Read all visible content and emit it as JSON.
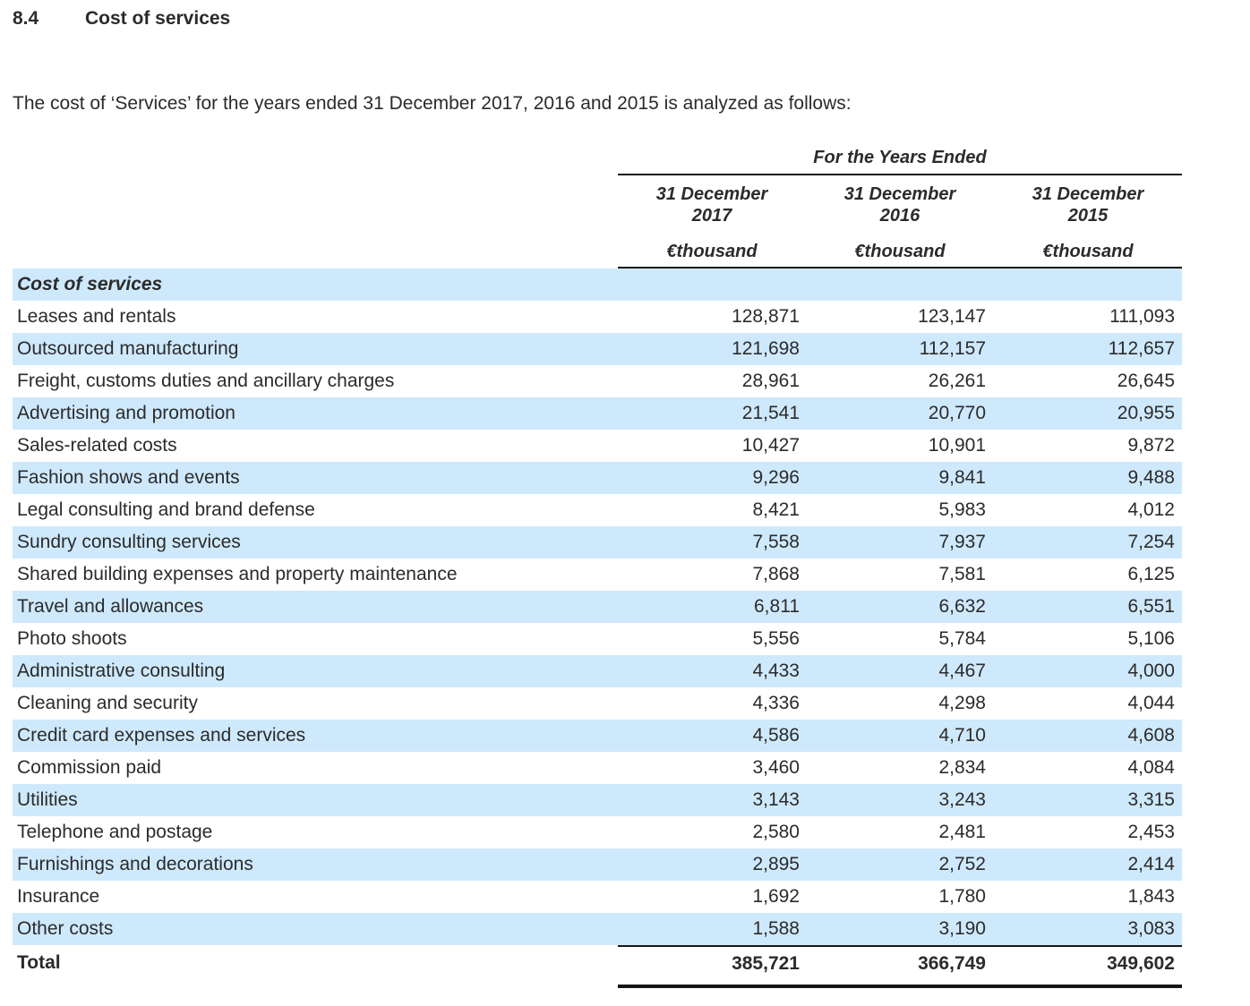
{
  "page": {
    "section_number": "8.4",
    "section_title": "Cost of services",
    "intro": "The cost of ‘Services’ for the years ended 31 December 2017, 2016 and 2015 is analyzed as follows:"
  },
  "colors": {
    "stripe_blue": "#cfe9fc",
    "rule_black": "#161616",
    "text": "#2b2b2b"
  },
  "table": {
    "group_header": "For the Years Ended",
    "columns": [
      {
        "period": "31 December",
        "year": "2017",
        "unit": "€thousand"
      },
      {
        "period": "31 December",
        "year": "2016",
        "unit": "€thousand"
      },
      {
        "period": "31 December",
        "year": "2015",
        "unit": "€thousand"
      }
    ],
    "section_label": "Cost of services",
    "rows": [
      {
        "label": "Leases and rentals",
        "values": [
          "128,871",
          "123,147",
          "111,093"
        ]
      },
      {
        "label": "Outsourced manufacturing",
        "values": [
          "121,698",
          "112,157",
          "112,657"
        ]
      },
      {
        "label": "Freight, customs duties and ancillary charges",
        "values": [
          "28,961",
          "26,261",
          "26,645"
        ]
      },
      {
        "label": "Advertising and promotion",
        "values": [
          "21,541",
          "20,770",
          "20,955"
        ]
      },
      {
        "label": "Sales-related costs",
        "values": [
          "10,427",
          "10,901",
          "9,872"
        ]
      },
      {
        "label": "Fashion shows and events",
        "values": [
          "9,296",
          "9,841",
          "9,488"
        ]
      },
      {
        "label": "Legal consulting and brand defense",
        "values": [
          "8,421",
          "5,983",
          "4,012"
        ]
      },
      {
        "label": "Sundry consulting services",
        "values": [
          "7,558",
          "7,937",
          "7,254"
        ]
      },
      {
        "label": "Shared building expenses and property maintenance",
        "values": [
          "7,868",
          "7,581",
          "6,125"
        ]
      },
      {
        "label": "Travel and allowances",
        "values": [
          "6,811",
          "6,632",
          "6,551"
        ]
      },
      {
        "label": "Photo shoots",
        "values": [
          "5,556",
          "5,784",
          "5,106"
        ]
      },
      {
        "label": "Administrative consulting",
        "values": [
          "4,433",
          "4,467",
          "4,000"
        ]
      },
      {
        "label": "Cleaning and security",
        "values": [
          "4,336",
          "4,298",
          "4,044"
        ]
      },
      {
        "label": "Credit card expenses and services",
        "values": [
          "4,586",
          "4,710",
          "4,608"
        ]
      },
      {
        "label": "Commission paid",
        "values": [
          "3,460",
          "2,834",
          "4,084"
        ]
      },
      {
        "label": "Utilities",
        "values": [
          "3,143",
          "3,243",
          "3,315"
        ]
      },
      {
        "label": "Telephone and postage",
        "values": [
          "2,580",
          "2,481",
          "2,453"
        ]
      },
      {
        "label": "Furnishings and decorations",
        "values": [
          "2,895",
          "2,752",
          "2,414"
        ]
      },
      {
        "label": "Insurance",
        "values": [
          "1,692",
          "1,780",
          "1,843"
        ]
      },
      {
        "label": "Other costs",
        "values": [
          "1,588",
          "3,190",
          "3,083"
        ]
      }
    ],
    "total": {
      "label": "Total",
      "values": [
        "385,721",
        "366,749",
        "349,602"
      ]
    }
  }
}
